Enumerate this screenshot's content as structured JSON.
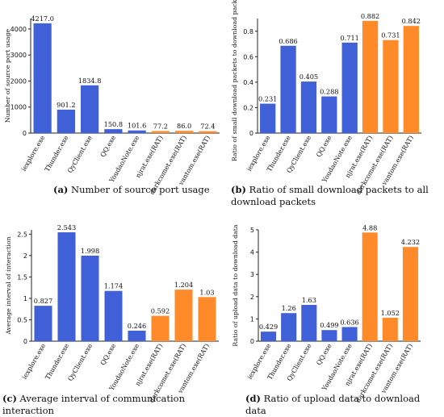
{
  "colors": {
    "benign": "#4060d8",
    "rat": "#ff8a2a",
    "axis": "#222222",
    "text": "#111111"
  },
  "chart_data": [
    {
      "type": "bar",
      "id": "a",
      "caption_label": "(a)",
      "caption_text": "Number of source port usage",
      "ylabel": "Number of source port usage",
      "xlabel": "",
      "categories": [
        "iexplore.exe",
        "Thunder.exe",
        "QyClient.exe",
        "QQ.exe",
        "YoudaoNote.exe",
        "njrat.exe(RAT)",
        "darkcomet.exe(RAT)",
        "vantom.exe(RAT)"
      ],
      "values": [
        4217.0,
        901.2,
        1834.8,
        150.8,
        101.6,
        77.2,
        86.0,
        72.4
      ],
      "value_labels": [
        "4217.0",
        "901.2",
        "1834.8",
        "150.8",
        "101.6",
        "77.2",
        "86.0",
        "72.4"
      ],
      "is_rat": [
        false,
        false,
        false,
        false,
        false,
        true,
        true,
        true
      ],
      "ylim": [
        0,
        4400
      ],
      "yticks": [
        0,
        1000,
        2000,
        3000,
        4000
      ],
      "ytick_labels": [
        "0",
        "1000",
        "2000",
        "3000",
        "4000"
      ],
      "grid": false
    },
    {
      "type": "bar",
      "id": "b",
      "caption_label": "(b)",
      "caption_text": "Ratio of small download packets to all download packets",
      "ylabel": "Ratio of small download packets to download packets",
      "xlabel": "",
      "categories": [
        "iexplore.exe",
        "Thunder.exe",
        "QyClient.exe",
        "QQ.exe",
        "YoudaoNote.exe",
        "njrat.exe(RAT)",
        "darkcomet.exe(RAT)",
        "vantom.exe(RAT)"
      ],
      "values": [
        0.231,
        0.686,
        0.405,
        0.288,
        0.711,
        0.882,
        0.731,
        0.842
      ],
      "value_labels": [
        "0.231",
        "0.686",
        "0.405",
        "0.288",
        "0.711",
        "0.882",
        "0.731",
        "0.842"
      ],
      "is_rat": [
        false,
        false,
        false,
        false,
        false,
        true,
        true,
        true
      ],
      "ylim": [
        0,
        0.9
      ],
      "yticks": [
        0,
        0.2,
        0.4,
        0.6,
        0.8
      ],
      "ytick_labels": [
        "0",
        "0.2",
        "0.4",
        "0.6",
        "0.8"
      ],
      "grid": false
    },
    {
      "type": "bar",
      "id": "c",
      "caption_label": "(c)",
      "caption_text": "Average interval of communication interaction",
      "ylabel": "Average interval of interaction",
      "xlabel": "",
      "categories": [
        "iexplore.exe",
        "Thunder.exe",
        "QyClient.exe",
        "QQ.exe",
        "YoudaoNote.exe",
        "njrat.exe(RAT)",
        "darkcomet.exe(RAT)",
        "vantom.exe(RAT)"
      ],
      "values": [
        0.827,
        2.543,
        1.998,
        1.174,
        0.246,
        0.592,
        1.204,
        1.03
      ],
      "value_labels": [
        "0.827",
        "2.543",
        "1.998",
        "1.174",
        "0.246",
        "0.592",
        "1.204",
        "1.03"
      ],
      "is_rat": [
        false,
        false,
        false,
        false,
        false,
        true,
        true,
        true
      ],
      "ylim": [
        0,
        2.6
      ],
      "yticks": [
        0,
        0.5,
        1,
        1.5,
        2,
        2.5
      ],
      "ytick_labels": [
        "0",
        "0.5",
        "1",
        "1.5",
        "2",
        "2.5"
      ],
      "grid": false
    },
    {
      "type": "bar",
      "id": "d",
      "caption_label": "(d)",
      "caption_text": "Ratio of upload data to download data",
      "ylabel": "Ratio of upload data to download data",
      "xlabel": "",
      "categories": [
        "iexplore.exe",
        "Thunder.exe",
        "QyClient.exe",
        "QQ.exe",
        "YoudaoNote.exe",
        "njrat.exe(RAT)",
        "darkcomet.exe(RAT)",
        "vantom.exe(RAT)"
      ],
      "values": [
        0.429,
        1.26,
        1.63,
        0.499,
        0.636,
        4.88,
        1.052,
        4.232
      ],
      "value_labels": [
        "0.429",
        "1.26",
        "1.63",
        "0.499",
        "0.636",
        "4.88",
        "1.052",
        "4.232"
      ],
      "is_rat": [
        false,
        false,
        false,
        false,
        false,
        true,
        true,
        true
      ],
      "ylim": [
        0,
        5
      ],
      "yticks": [
        0,
        1,
        2,
        3,
        4,
        5
      ],
      "ytick_labels": [
        "0",
        "1",
        "2",
        "3",
        "4",
        "5"
      ],
      "grid": false
    }
  ]
}
